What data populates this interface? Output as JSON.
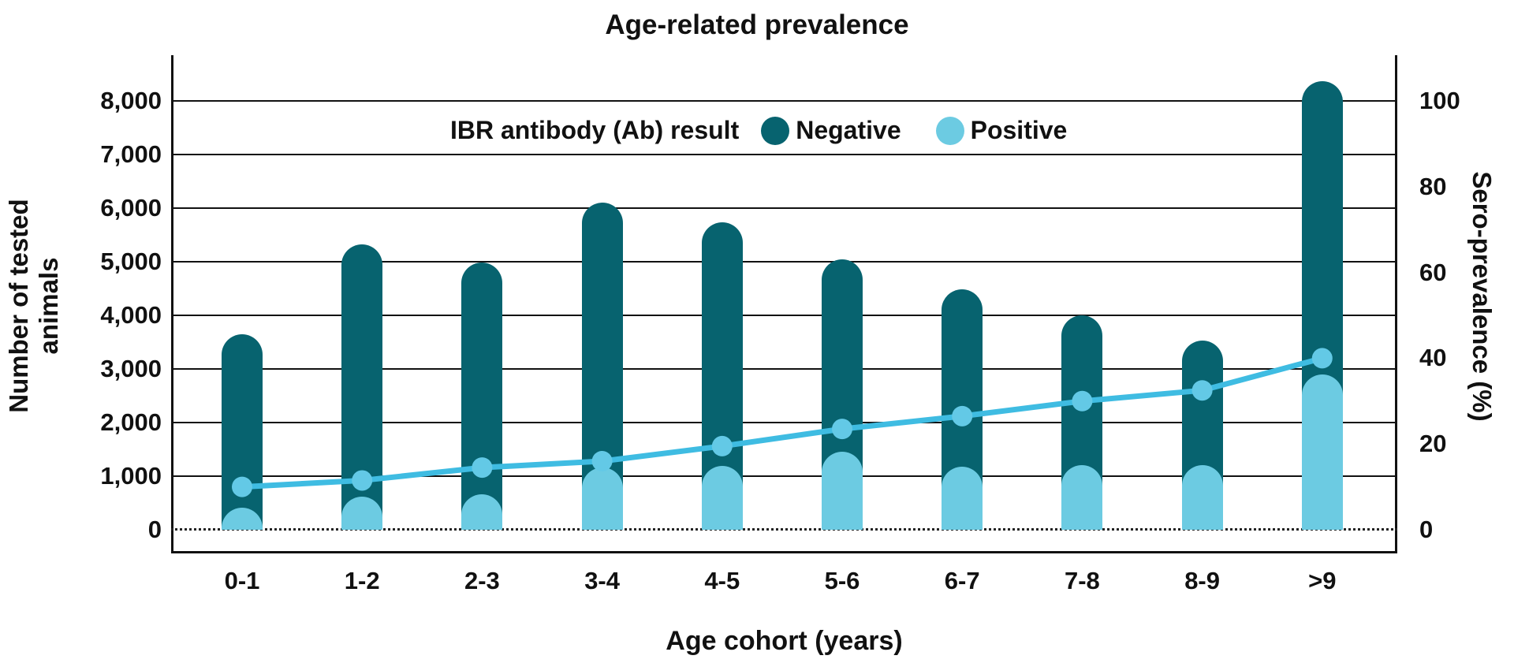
{
  "title": "Age-related prevalence",
  "legend": {
    "label": "IBR antibody (Ab) result",
    "items": [
      {
        "name": "Negative",
        "color": "#07636f"
      },
      {
        "name": "Positive",
        "color": "#6ccbe2"
      }
    ]
  },
  "axes": {
    "x_title": "Age cohort (years)",
    "y_left_title": "Number of tested animals",
    "y_right_title": "Sero-prevalence (%)",
    "y_left_ticks": [
      {
        "value": 0,
        "label": "0"
      },
      {
        "value": 1000,
        "label": "1,000"
      },
      {
        "value": 2000,
        "label": "2,000"
      },
      {
        "value": 3000,
        "label": "3,000"
      },
      {
        "value": 4000,
        "label": "4,000"
      },
      {
        "value": 5000,
        "label": "5,000"
      },
      {
        "value": 6000,
        "label": "6,000"
      },
      {
        "value": 7000,
        "label": "7,000"
      },
      {
        "value": 8000,
        "label": "8,000"
      }
    ],
    "y_right_ticks": [
      {
        "value": 0,
        "label": "0"
      },
      {
        "value": 20,
        "label": "20"
      },
      {
        "value": 40,
        "label": "40"
      },
      {
        "value": 60,
        "label": "60"
      },
      {
        "value": 80,
        "label": "80"
      },
      {
        "value": 100,
        "label": "100"
      }
    ]
  },
  "colors": {
    "negative_bar": "#07636f",
    "positive_bar": "#6ccbe2",
    "prevalence_line": "#3fbce2",
    "prevalence_dot": "#63c9e6",
    "axis": "#111111"
  },
  "chart_data": {
    "type": "bar",
    "subtype": "stacked-bars-with-line",
    "title": "Age-related prevalence",
    "xlabel": "Age cohort (years)",
    "ylabel_left": "Number of tested animals",
    "ylabel_right": "Sero-prevalence (%)",
    "categories": [
      "0-1",
      "1-2",
      "2-3",
      "3-4",
      "4-5",
      "5-6",
      "6-7",
      "7-8",
      "8-9",
      ">9"
    ],
    "series": [
      {
        "name": "Negative",
        "type": "bar",
        "axis": "left",
        "values": [
          3240,
          4700,
          4320,
          4940,
          4540,
          3590,
          3300,
          2790,
          2320,
          5470
        ]
      },
      {
        "name": "Positive",
        "type": "bar",
        "axis": "left",
        "values": [
          410,
          620,
          660,
          1160,
          1190,
          1460,
          1180,
          1210,
          1210,
          2900
        ]
      },
      {
        "name": "Sero-prevalence (%)",
        "type": "line",
        "axis": "right",
        "values": [
          10,
          11.5,
          14.5,
          16,
          19.5,
          23.5,
          26.5,
          30,
          32.5,
          40
        ]
      }
    ],
    "totals_tested": [
      3650,
      5320,
      4980,
      6100,
      5730,
      5050,
      4480,
      4000,
      3530,
      8370
    ],
    "ylim_left": [
      0,
      8850
    ],
    "ylim_right": [
      0,
      110
    ],
    "grid": true,
    "gridline_step_left": 1000,
    "zero_line_style": "dotted",
    "legend_position": "top-inside"
  }
}
